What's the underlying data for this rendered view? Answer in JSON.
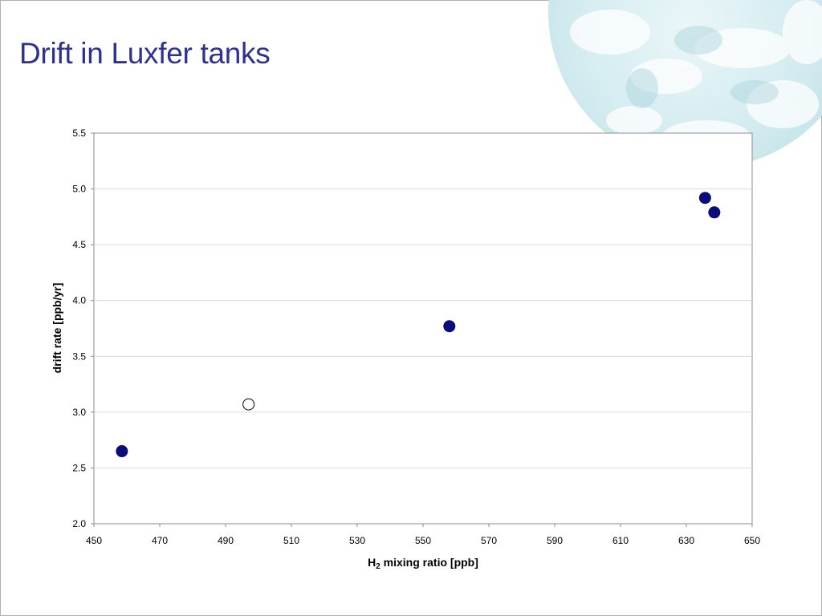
{
  "slide": {
    "title": "Drift in Luxfer tanks"
  },
  "chart_data": {
    "type": "scatter",
    "title": "",
    "xlabel_main": "H",
    "xlabel_sub": "2",
    "xlabel_rest": " mixing ratio [ppb]",
    "ylabel": "drift rate [ppb/yr]",
    "xlim": [
      450,
      650
    ],
    "ylim": [
      2.0,
      5.5
    ],
    "x_ticks": [
      450,
      470,
      490,
      510,
      530,
      550,
      570,
      590,
      610,
      630,
      650
    ],
    "y_ticks": [
      "2.0",
      "2.5",
      "3.0",
      "3.5",
      "4.0",
      "4.5",
      "5.0",
      "5.5"
    ],
    "grid": "horizontal",
    "colors": {
      "filled": "#0b0b7a",
      "hollow_stroke": "#000000",
      "title": "#2e3192"
    },
    "series": [
      {
        "style": "filled",
        "points": [
          {
            "x": 458.5,
            "y": 2.65
          },
          {
            "x": 558,
            "y": 3.77
          },
          {
            "x": 635.7,
            "y": 4.92
          },
          {
            "x": 638.5,
            "y": 4.79
          }
        ]
      },
      {
        "style": "hollow",
        "points": [
          {
            "x": 497,
            "y": 3.07
          }
        ]
      }
    ]
  }
}
